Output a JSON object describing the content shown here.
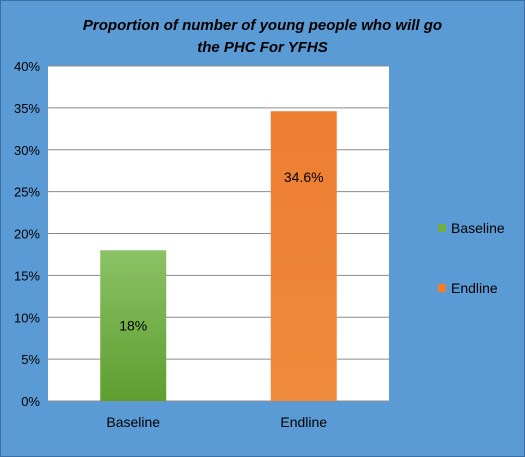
{
  "chart_data": {
    "type": "bar",
    "title_line1": "Proportion of  number of young people who  will go",
    "title_line2": "the PHC For YFHS",
    "categories": [
      "Baseline",
      "Endline"
    ],
    "values": [
      18,
      34.6
    ],
    "data_labels": [
      "18%",
      "34.6%"
    ],
    "colors": [
      "#70ad47",
      "#ed7d31"
    ],
    "ylim": [
      0,
      40
    ],
    "yticks": [
      "0%",
      "5%",
      "10%",
      "15%",
      "20%",
      "25%",
      "30%",
      "35%",
      "40%"
    ],
    "grid": true,
    "legend_position": "right",
    "legend": [
      {
        "label": "Baseline",
        "color": "#70ad47"
      },
      {
        "label": "Endline",
        "color": "#ed7d31"
      }
    ]
  }
}
